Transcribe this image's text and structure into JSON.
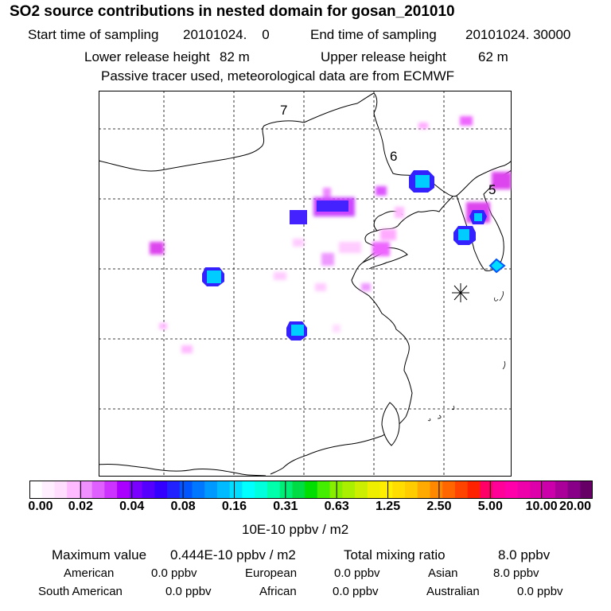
{
  "header": {
    "title": "SO2 source contributions in nested domain for gosan_201010",
    "start_label": "Start time of sampling",
    "start_value": "20101024.    0",
    "end_label": "End time of sampling",
    "end_value": "20101024. 30000",
    "lower_label": "Lower release height",
    "lower_value": "82 m",
    "upper_label": "Upper release height",
    "upper_value": "62 m",
    "note": "Passive tracer used, meteorological data are from ECMWF"
  },
  "map": {
    "region_labels": [
      "7",
      "6",
      "5"
    ],
    "receptor_marker": "asterisk-icon"
  },
  "legend": {
    "tick_labels": [
      "0.00",
      "0.02",
      "0.04",
      "0.08",
      "0.16",
      "0.31",
      "0.63",
      "1.25",
      "2.50",
      "5.00",
      "10.00",
      "20.00"
    ],
    "unit": "10E-10 ppbv / m2",
    "colors": [
      "#ffffff",
      "#ffeeff",
      "#ffddff",
      "#ffbbff",
      "#f090ff",
      "#e060ff",
      "#cc33ff",
      "#aa00ff",
      "#7a00ff",
      "#5500ff",
      "#3300ff",
      "#2222ff",
      "#0055ff",
      "#0077ff",
      "#0099ff",
      "#00bbff",
      "#00ddff",
      "#00ffff",
      "#00ffdd",
      "#00ffaa",
      "#00ee77",
      "#00dd44",
      "#00dd00",
      "#44ee00",
      "#88ee00",
      "#aaee00",
      "#ccee00",
      "#eeee00",
      "#ffee00",
      "#ffdd00",
      "#ffcc00",
      "#ffaa00",
      "#ff8800",
      "#ff6600",
      "#ff4400",
      "#ff2200",
      "#ff0066",
      "#ff0099",
      "#ff00aa",
      "#ee00aa",
      "#dd00aa",
      "#cc00aa",
      "#aa0099",
      "#880088",
      "#660066"
    ]
  },
  "summary": {
    "max_label": "Maximum value",
    "max_value": "0.444E-10 ppbv / m2",
    "total_label": "Total mixing ratio",
    "total_value": "8.0 ppbv",
    "regions": [
      {
        "name": "American",
        "value": "0.0 ppbv"
      },
      {
        "name": "European",
        "value": "0.0 ppbv"
      },
      {
        "name": "Asian",
        "value": "8.0 ppbv"
      },
      {
        "name": "South American",
        "value": "0.0 ppbv"
      },
      {
        "name": "African",
        "value": "0.0 ppbv"
      },
      {
        "name": "Australian",
        "value": "0.0 ppbv"
      }
    ]
  }
}
